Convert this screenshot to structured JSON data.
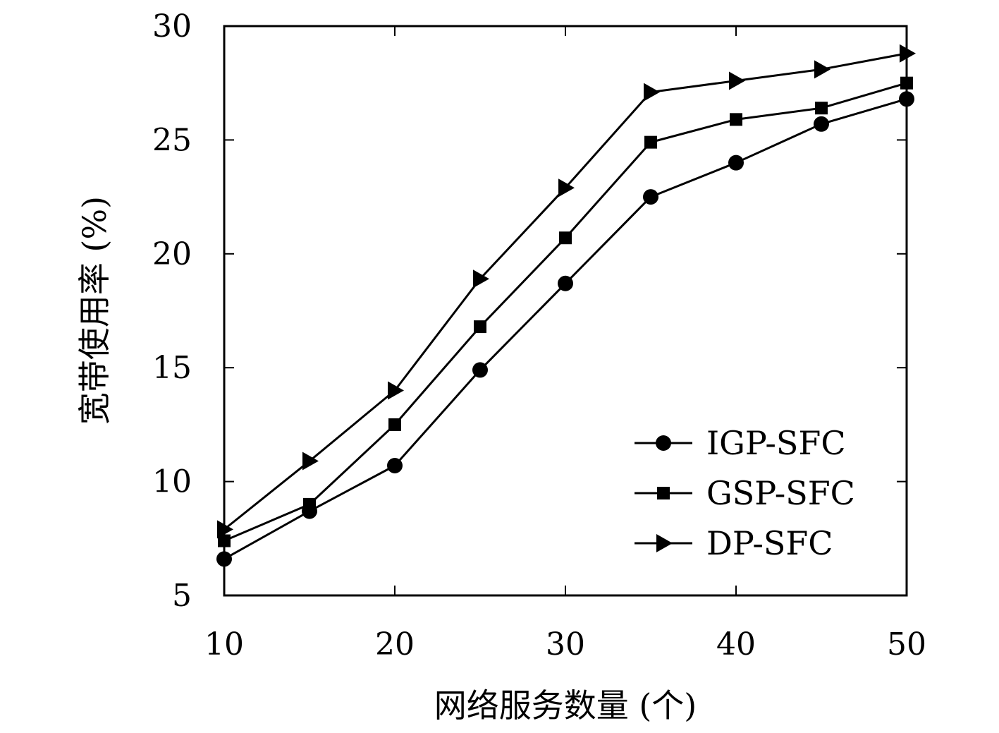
{
  "chart_data": {
    "type": "line",
    "title": "",
    "xlabel": "网络服务数量 (个)",
    "ylabel": "宽带使用率 (%)",
    "xlim": [
      10,
      50
    ],
    "ylim": [
      5,
      30
    ],
    "xticks": [
      10,
      20,
      30,
      40,
      50
    ],
    "yticks": [
      5,
      10,
      15,
      20,
      25,
      30
    ],
    "grid": false,
    "legend_position": "bottom-right",
    "x": [
      10,
      15,
      20,
      25,
      30,
      35,
      40,
      45,
      50
    ],
    "series": [
      {
        "name": "IGP-SFC",
        "marker": "circle",
        "values": [
          6.6,
          8.7,
          10.7,
          14.9,
          18.7,
          22.5,
          24.0,
          25.7,
          26.8
        ]
      },
      {
        "name": "GSP-SFC",
        "marker": "square",
        "values": [
          7.4,
          9.0,
          12.5,
          16.8,
          20.7,
          24.9,
          25.9,
          26.4,
          27.5
        ]
      },
      {
        "name": "DP-SFC",
        "marker": "triangle-right",
        "values": [
          7.9,
          10.9,
          14.0,
          18.9,
          22.9,
          27.1,
          27.6,
          28.1,
          28.8
        ]
      }
    ],
    "colors": {
      "line": "#000000",
      "marker": "#000000",
      "axis": "#000000"
    }
  }
}
